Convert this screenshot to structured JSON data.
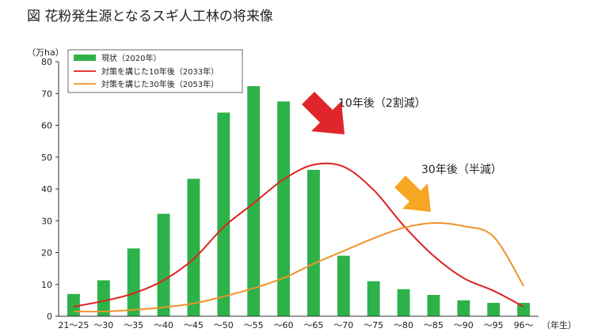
{
  "chart_data": {
    "type": "bar",
    "title": "図 花粉発生源となるスギ人工林の将来像",
    "ylabel": "（万ha）",
    "xlabel": "（年生）",
    "ylim": [
      0,
      80
    ],
    "yticks": [
      0,
      10,
      20,
      30,
      40,
      50,
      60,
      70,
      80
    ],
    "grid": false,
    "legend_position": "top-left",
    "categories": [
      "21〜25",
      "〜30",
      "〜35",
      "〜40",
      "〜45",
      "〜50",
      "〜55",
      "〜60",
      "〜65",
      "〜70",
      "〜75",
      "〜80",
      "〜85",
      "〜90",
      "〜95",
      "96〜"
    ],
    "series": [
      {
        "name": "現状（2020年）",
        "type": "bar",
        "color": "#2db24a",
        "values": [
          7,
          11.3,
          21.3,
          32.2,
          43.2,
          64,
          72.3,
          67.5,
          46,
          19,
          11,
          8.5,
          6.7,
          5,
          4.2,
          4.2
        ]
      },
      {
        "name": "対策を講じた10年後（2033年）",
        "type": "line",
        "color": "#e02020",
        "values": [
          3,
          4.8,
          7.2,
          11.3,
          18,
          28,
          35.5,
          43,
          47.6,
          47,
          39.7,
          28.5,
          19,
          12,
          8,
          3
        ]
      },
      {
        "name": "対策を講じた30年後（2053年）",
        "type": "line",
        "color": "#f0922a",
        "values": [
          1.5,
          1.5,
          2,
          2.8,
          4,
          6.2,
          8.8,
          12,
          16.5,
          20.5,
          24.5,
          27.8,
          29.3,
          28.3,
          25,
          9.5
        ]
      }
    ],
    "annotations": [
      {
        "text": "10年後（2割減）",
        "arrow_color": "#e0262b"
      },
      {
        "text": "30年後（半減）",
        "arrow_color": "#f5a623"
      }
    ]
  }
}
